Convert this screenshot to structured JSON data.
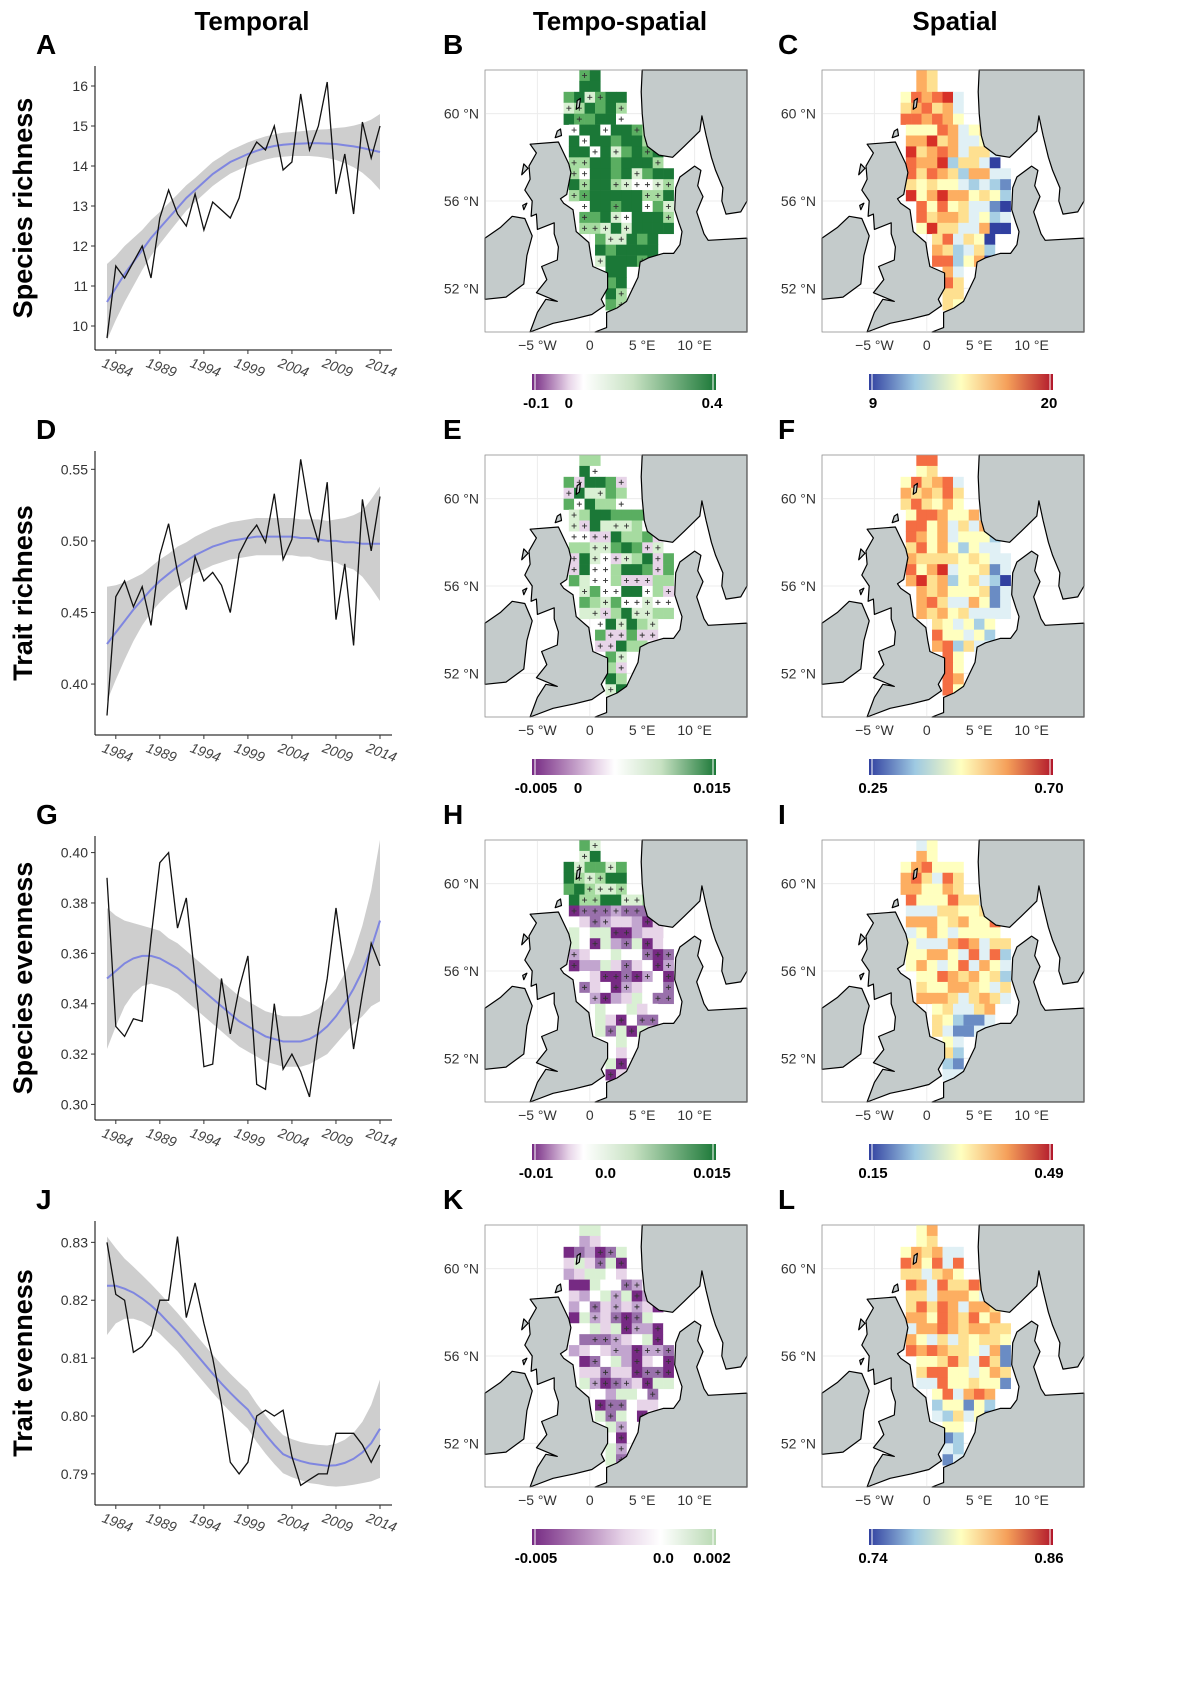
{
  "column_titles": [
    "Temporal",
    "Tempo-spatial",
    "Spatial"
  ],
  "map_axes": {
    "x_ticks": [
      "−5 °W",
      "0",
      "5 °E",
      "10 °E"
    ],
    "y_ticks": [
      "60 °N",
      "56 °N",
      "52 °N"
    ]
  },
  "colors": {
    "land": "#c4cbcb",
    "ts_negative": "#762a83",
    "ts_positive": "#1b7837",
    "spatial_low": "#3140a0",
    "spatial_mid": "#ffffbf",
    "spatial_high": "#b2182b",
    "smooth_line": "#7f86e0",
    "ribbon": "#bdbdbd"
  },
  "rows": [
    {
      "ylabel": "Species richness",
      "letters": [
        "A",
        "B",
        "C"
      ],
      "ts_colorbar": {
        "labels": [
          "-0.1",
          "0",
          "0.4"
        ],
        "min": -0.1,
        "max": 0.4
      },
      "sp_colorbar": {
        "labels": [
          "9",
          "20"
        ],
        "min": 9,
        "max": 20
      }
    },
    {
      "ylabel": "Trait richness",
      "letters": [
        "D",
        "E",
        "F"
      ],
      "ts_colorbar": {
        "labels": [
          "-0.005",
          "0",
          "0.015"
        ],
        "min": -0.005,
        "max": 0.015
      },
      "sp_colorbar": {
        "labels": [
          "0.25",
          "0.70"
        ],
        "min": 0.25,
        "max": 0.7
      }
    },
    {
      "ylabel": "Species evenness",
      "letters": [
        "G",
        "H",
        "I"
      ],
      "ts_colorbar": {
        "labels": [
          "-0.01",
          "0.0",
          "0.015"
        ],
        "min": -0.01,
        "max": 0.015
      },
      "sp_colorbar": {
        "labels": [
          "0.15",
          "0.49"
        ],
        "min": 0.15,
        "max": 0.49
      }
    },
    {
      "ylabel": "Trait evenness",
      "letters": [
        "J",
        "K",
        "L"
      ],
      "ts_colorbar": {
        "labels": [
          "-0.005",
          "0.0",
          "0.002"
        ],
        "min": -0.005,
        "max": 0.002
      },
      "sp_colorbar": {
        "labels": [
          "0.74",
          "0.86"
        ],
        "min": 0.74,
        "max": 0.86
      }
    }
  ],
  "chart_data": [
    {
      "type": "line",
      "panel": "A",
      "ylabel": "Species richness",
      "x": [
        1983,
        1984,
        1985,
        1986,
        1987,
        1988,
        1989,
        1990,
        1991,
        1992,
        1993,
        1994,
        1995,
        1996,
        1997,
        1998,
        1999,
        2000,
        2001,
        2002,
        2003,
        2004,
        2005,
        2006,
        2007,
        2008,
        2009,
        2010,
        2011,
        2012,
        2013,
        2014
      ],
      "x_ticks": [
        "1984",
        "1989",
        "1994",
        "1999",
        "2004",
        "2009",
        "2014"
      ],
      "y_ticks": [
        10,
        11,
        12,
        13,
        14,
        15,
        16
      ],
      "ylim": [
        9.6,
        16.4
      ],
      "values": [
        9.7,
        11.5,
        11.2,
        11.6,
        12.0,
        11.2,
        12.7,
        13.4,
        12.8,
        12.5,
        13.3,
        12.4,
        13.1,
        12.9,
        12.7,
        13.2,
        14.2,
        14.6,
        14.4,
        15.0,
        13.9,
        14.1,
        15.8,
        14.4,
        15.0,
        16.1,
        13.3,
        14.3,
        12.8,
        15.1,
        14.2,
        15.0
      ],
      "smooth": [
        10.6,
        10.95,
        11.3,
        11.6,
        11.9,
        12.2,
        12.45,
        12.7,
        12.95,
        13.2,
        13.4,
        13.6,
        13.8,
        13.95,
        14.1,
        14.2,
        14.3,
        14.38,
        14.45,
        14.5,
        14.53,
        14.55,
        14.56,
        14.57,
        14.57,
        14.56,
        14.55,
        14.52,
        14.49,
        14.45,
        14.4,
        14.35
      ],
      "ribbon": [
        0.95,
        0.8,
        0.7,
        0.6,
        0.5,
        0.45,
        0.4,
        0.37,
        0.34,
        0.32,
        0.3,
        0.3,
        0.3,
        0.29,
        0.29,
        0.29,
        0.29,
        0.29,
        0.29,
        0.29,
        0.3,
        0.3,
        0.31,
        0.32,
        0.34,
        0.36,
        0.4,
        0.45,
        0.52,
        0.62,
        0.76,
        0.95
      ]
    },
    {
      "type": "line",
      "panel": "D",
      "ylabel": "Trait richness",
      "x": [
        1983,
        1984,
        1985,
        1986,
        1987,
        1988,
        1989,
        1990,
        1991,
        1992,
        1993,
        1994,
        1995,
        1996,
        1997,
        1998,
        1999,
        2000,
        2001,
        2002,
        2003,
        2004,
        2005,
        2006,
        2007,
        2008,
        2009,
        2010,
        2011,
        2012,
        2013,
        2014
      ],
      "x_ticks": [
        "1984",
        "1989",
        "1994",
        "1999",
        "2004",
        "2009",
        "2014"
      ],
      "y_ticks": [
        0.4,
        0.45,
        0.5,
        0.55
      ],
      "ylim": [
        0.37,
        0.56
      ],
      "values": [
        0.378,
        0.461,
        0.472,
        0.454,
        0.468,
        0.441,
        0.49,
        0.512,
        0.478,
        0.452,
        0.489,
        0.472,
        0.478,
        0.469,
        0.45,
        0.491,
        0.503,
        0.511,
        0.499,
        0.533,
        0.487,
        0.501,
        0.557,
        0.52,
        0.499,
        0.541,
        0.445,
        0.484,
        0.427,
        0.529,
        0.493,
        0.531
      ],
      "smooth": [
        0.428,
        0.436,
        0.444,
        0.452,
        0.459,
        0.466,
        0.472,
        0.477,
        0.482,
        0.486,
        0.49,
        0.493,
        0.496,
        0.498,
        0.5,
        0.501,
        0.502,
        0.503,
        0.503,
        0.503,
        0.503,
        0.503,
        0.502,
        0.502,
        0.501,
        0.5,
        0.5,
        0.499,
        0.499,
        0.498,
        0.498,
        0.498
      ],
      "ribbon": [
        0.04,
        0.033,
        0.027,
        0.022,
        0.018,
        0.016,
        0.015,
        0.014,
        0.014,
        0.013,
        0.013,
        0.013,
        0.013,
        0.013,
        0.013,
        0.013,
        0.013,
        0.013,
        0.013,
        0.013,
        0.013,
        0.013,
        0.013,
        0.013,
        0.014,
        0.014,
        0.015,
        0.017,
        0.019,
        0.023,
        0.031,
        0.04
      ]
    },
    {
      "type": "line",
      "panel": "G",
      "ylabel": "Species evenness",
      "x": [
        1983,
        1984,
        1985,
        1986,
        1987,
        1988,
        1989,
        1990,
        1991,
        1992,
        1993,
        1994,
        1995,
        1996,
        1997,
        1998,
        1999,
        2000,
        2001,
        2002,
        2003,
        2004,
        2005,
        2006,
        2007,
        2008,
        2009,
        2010,
        2011,
        2012,
        2013,
        2014
      ],
      "x_ticks": [
        "1984",
        "1989",
        "1994",
        "1999",
        "2004",
        "2009",
        "2014"
      ],
      "y_ticks": [
        0.3,
        0.32,
        0.34,
        0.36,
        0.38,
        0.4
      ],
      "ylim": [
        0.297,
        0.405
      ],
      "values": [
        0.39,
        0.331,
        0.327,
        0.334,
        0.333,
        0.366,
        0.396,
        0.4,
        0.37,
        0.382,
        0.35,
        0.315,
        0.316,
        0.35,
        0.328,
        0.346,
        0.359,
        0.308,
        0.306,
        0.34,
        0.314,
        0.32,
        0.313,
        0.303,
        0.33,
        0.35,
        0.378,
        0.352,
        0.322,
        0.344,
        0.364,
        0.355
      ],
      "smooth": [
        0.35,
        0.353,
        0.356,
        0.358,
        0.359,
        0.359,
        0.358,
        0.356,
        0.354,
        0.351,
        0.348,
        0.345,
        0.342,
        0.339,
        0.336,
        0.333,
        0.331,
        0.329,
        0.327,
        0.326,
        0.325,
        0.325,
        0.325,
        0.326,
        0.328,
        0.331,
        0.335,
        0.34,
        0.346,
        0.353,
        0.362,
        0.373
      ],
      "ribbon": [
        0.028,
        0.022,
        0.017,
        0.014,
        0.012,
        0.011,
        0.011,
        0.01,
        0.01,
        0.01,
        0.01,
        0.01,
        0.01,
        0.01,
        0.01,
        0.01,
        0.01,
        0.01,
        0.01,
        0.01,
        0.01,
        0.01,
        0.01,
        0.01,
        0.01,
        0.011,
        0.011,
        0.012,
        0.014,
        0.018,
        0.023,
        0.032
      ]
    },
    {
      "type": "line",
      "panel": "J",
      "ylabel": "Trait evenness",
      "x": [
        1983,
        1984,
        1985,
        1986,
        1987,
        1988,
        1989,
        1990,
        1991,
        1992,
        1993,
        1994,
        1995,
        1996,
        1997,
        1998,
        1999,
        2000,
        2001,
        2002,
        2003,
        2004,
        2005,
        2006,
        2007,
        2008,
        2009,
        2010,
        2011,
        2012,
        2013,
        2014
      ],
      "x_ticks": [
        "1984",
        "1989",
        "1994",
        "1999",
        "2004",
        "2009",
        "2014"
      ],
      "y_ticks": [
        0.79,
        0.8,
        0.81,
        0.82,
        0.83
      ],
      "ylim": [
        0.786,
        0.833
      ],
      "values": [
        0.83,
        0.821,
        0.82,
        0.811,
        0.812,
        0.814,
        0.82,
        0.82,
        0.831,
        0.817,
        0.823,
        0.816,
        0.81,
        0.802,
        0.792,
        0.79,
        0.792,
        0.8,
        0.801,
        0.8,
        0.801,
        0.793,
        0.788,
        0.789,
        0.79,
        0.79,
        0.797,
        0.797,
        0.797,
        0.795,
        0.792,
        0.795
      ],
      "smooth": [
        0.8225,
        0.8225,
        0.822,
        0.8213,
        0.8203,
        0.8191,
        0.8177,
        0.8161,
        0.8145,
        0.8127,
        0.8109,
        0.8091,
        0.8073,
        0.8056,
        0.804,
        0.8025,
        0.8011,
        0.7988,
        0.7968,
        0.795,
        0.7934,
        0.7927,
        0.7922,
        0.7918,
        0.7916,
        0.7914,
        0.7915,
        0.7919,
        0.7926,
        0.7937,
        0.7953,
        0.7978
      ],
      "ribbon": [
        0.0085,
        0.0065,
        0.0052,
        0.0045,
        0.004,
        0.0037,
        0.0035,
        0.0034,
        0.0033,
        0.0033,
        0.0033,
        0.0033,
        0.0033,
        0.0033,
        0.0033,
        0.0033,
        0.0033,
        0.0033,
        0.0033,
        0.0033,
        0.0033,
        0.0033,
        0.0033,
        0.0034,
        0.0034,
        0.0035,
        0.0037,
        0.004,
        0.0045,
        0.0053,
        0.0066,
        0.0085
      ]
    }
  ]
}
